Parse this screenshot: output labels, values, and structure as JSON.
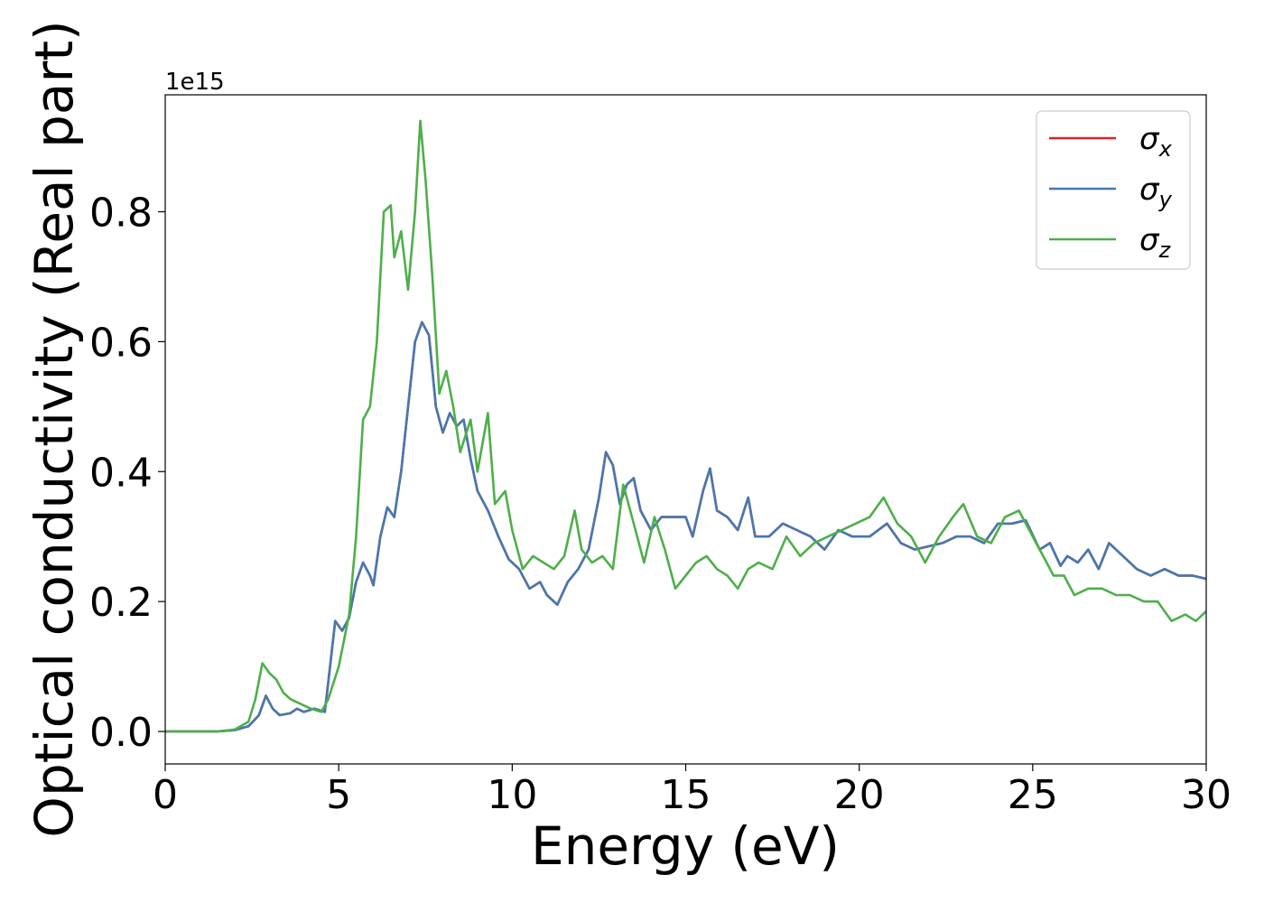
{
  "chart_data": {
    "type": "line",
    "title": "",
    "xlabel": "Energy (eV)",
    "ylabel": "Optical conductivity (Real part)",
    "offset_text": "1e15",
    "xlim": [
      0,
      30
    ],
    "ylim": [
      -0.05,
      0.98
    ],
    "grid": false,
    "legend_position": "top-right",
    "x_ticks": [
      0,
      5,
      10,
      15,
      20,
      25,
      30
    ],
    "x_tick_labels": [
      "0",
      "5",
      "10",
      "15",
      "20",
      "25",
      "30"
    ],
    "y_ticks": [
      0.0,
      0.2,
      0.4,
      0.6,
      0.8
    ],
    "y_tick_labels": [
      "0.0",
      "0.2",
      "0.4",
      "0.6",
      "0.8"
    ],
    "legend": [
      {
        "symbol": "σ",
        "sub": "x",
        "color": "#d62728"
      },
      {
        "symbol": "σ",
        "sub": "y",
        "color": "#4678b0"
      },
      {
        "symbol": "σ",
        "sub": "z",
        "color": "#4daf4a"
      }
    ],
    "series": [
      {
        "name": "σx",
        "color": "#d62728",
        "x": [
          0,
          0.5,
          1,
          1.5,
          2,
          2.4,
          2.7,
          2.9,
          3.1,
          3.3,
          3.6,
          3.8,
          4.0,
          4.3,
          4.6,
          4.9,
          5.1,
          5.3,
          5.5,
          5.7,
          5.9,
          6.0,
          6.2,
          6.4,
          6.6,
          6.8,
          7.0,
          7.2,
          7.4,
          7.6,
          7.8,
          8.0,
          8.2,
          8.4,
          8.6,
          8.8,
          9.0,
          9.3,
          9.6,
          9.9,
          10.2,
          10.5,
          10.8,
          11.0,
          11.3,
          11.6,
          11.9,
          12.2,
          12.5,
          12.7,
          12.9,
          13.1,
          13.3,
          13.5,
          13.7,
          14.0,
          14.3,
          14.6,
          15.0,
          15.2,
          15.5,
          15.7,
          15.9,
          16.2,
          16.5,
          16.8,
          17.0,
          17.4,
          17.8,
          18.2,
          18.6,
          19.0,
          19.4,
          19.8,
          20.3,
          20.8,
          21.2,
          21.6,
          22.0,
          22.4,
          22.8,
          23.2,
          23.6,
          24.0,
          24.4,
          24.8,
          25.2,
          25.5,
          25.8,
          26.0,
          26.3,
          26.6,
          26.9,
          27.2,
          27.6,
          28.0,
          28.4,
          28.8,
          29.2,
          29.6,
          30.0
        ],
        "y": [
          0.0,
          0.0,
          0.0,
          0.0,
          0.002,
          0.008,
          0.025,
          0.055,
          0.035,
          0.025,
          0.028,
          0.035,
          0.03,
          0.035,
          0.03,
          0.17,
          0.155,
          0.175,
          0.23,
          0.26,
          0.24,
          0.225,
          0.3,
          0.345,
          0.33,
          0.4,
          0.5,
          0.6,
          0.63,
          0.61,
          0.5,
          0.46,
          0.49,
          0.47,
          0.48,
          0.42,
          0.37,
          0.34,
          0.3,
          0.265,
          0.25,
          0.22,
          0.23,
          0.21,
          0.195,
          0.23,
          0.25,
          0.28,
          0.36,
          0.43,
          0.41,
          0.35,
          0.38,
          0.39,
          0.34,
          0.31,
          0.33,
          0.33,
          0.33,
          0.3,
          0.37,
          0.405,
          0.34,
          0.33,
          0.31,
          0.36,
          0.3,
          0.3,
          0.32,
          0.31,
          0.3,
          0.28,
          0.31,
          0.3,
          0.3,
          0.32,
          0.29,
          0.28,
          0.285,
          0.29,
          0.3,
          0.3,
          0.29,
          0.32,
          0.32,
          0.325,
          0.28,
          0.29,
          0.255,
          0.27,
          0.26,
          0.28,
          0.25,
          0.29,
          0.27,
          0.25,
          0.24,
          0.25,
          0.24,
          0.24,
          0.235
        ]
      },
      {
        "name": "σy",
        "color": "#4678b0",
        "x": [
          0,
          0.5,
          1,
          1.5,
          2,
          2.4,
          2.7,
          2.9,
          3.1,
          3.3,
          3.6,
          3.8,
          4.0,
          4.3,
          4.6,
          4.9,
          5.1,
          5.3,
          5.5,
          5.7,
          5.9,
          6.0,
          6.2,
          6.4,
          6.6,
          6.8,
          7.0,
          7.2,
          7.4,
          7.6,
          7.8,
          8.0,
          8.2,
          8.4,
          8.6,
          8.8,
          9.0,
          9.3,
          9.6,
          9.9,
          10.2,
          10.5,
          10.8,
          11.0,
          11.3,
          11.6,
          11.9,
          12.2,
          12.5,
          12.7,
          12.9,
          13.1,
          13.3,
          13.5,
          13.7,
          14.0,
          14.3,
          14.6,
          15.0,
          15.2,
          15.5,
          15.7,
          15.9,
          16.2,
          16.5,
          16.8,
          17.0,
          17.4,
          17.8,
          18.2,
          18.6,
          19.0,
          19.4,
          19.8,
          20.3,
          20.8,
          21.2,
          21.6,
          22.0,
          22.4,
          22.8,
          23.2,
          23.6,
          24.0,
          24.4,
          24.8,
          25.2,
          25.5,
          25.8,
          26.0,
          26.3,
          26.6,
          26.9,
          27.2,
          27.6,
          28.0,
          28.4,
          28.8,
          29.2,
          29.6,
          30.0
        ],
        "y": [
          0.0,
          0.0,
          0.0,
          0.0,
          0.002,
          0.008,
          0.025,
          0.055,
          0.035,
          0.025,
          0.028,
          0.035,
          0.03,
          0.035,
          0.03,
          0.17,
          0.155,
          0.175,
          0.23,
          0.26,
          0.24,
          0.225,
          0.3,
          0.345,
          0.33,
          0.4,
          0.5,
          0.6,
          0.63,
          0.61,
          0.5,
          0.46,
          0.49,
          0.47,
          0.48,
          0.42,
          0.37,
          0.34,
          0.3,
          0.265,
          0.25,
          0.22,
          0.23,
          0.21,
          0.195,
          0.23,
          0.25,
          0.28,
          0.36,
          0.43,
          0.41,
          0.35,
          0.38,
          0.39,
          0.34,
          0.31,
          0.33,
          0.33,
          0.33,
          0.3,
          0.37,
          0.405,
          0.34,
          0.33,
          0.31,
          0.36,
          0.3,
          0.3,
          0.32,
          0.31,
          0.3,
          0.28,
          0.31,
          0.3,
          0.3,
          0.32,
          0.29,
          0.28,
          0.285,
          0.29,
          0.3,
          0.3,
          0.29,
          0.32,
          0.32,
          0.325,
          0.28,
          0.29,
          0.255,
          0.27,
          0.26,
          0.28,
          0.25,
          0.29,
          0.27,
          0.25,
          0.24,
          0.25,
          0.24,
          0.24,
          0.235
        ]
      },
      {
        "name": "σz",
        "color": "#4daf4a",
        "x": [
          0,
          0.5,
          1,
          1.5,
          2,
          2.4,
          2.6,
          2.8,
          3.0,
          3.2,
          3.4,
          3.6,
          3.8,
          4.0,
          4.2,
          4.5,
          4.7,
          5.0,
          5.3,
          5.5,
          5.7,
          5.9,
          6.1,
          6.3,
          6.5,
          6.6,
          6.8,
          7.0,
          7.2,
          7.35,
          7.5,
          7.7,
          7.9,
          8.1,
          8.3,
          8.5,
          8.8,
          9.0,
          9.3,
          9.5,
          9.8,
          10.0,
          10.3,
          10.6,
          10.9,
          11.2,
          11.5,
          11.8,
          12.0,
          12.3,
          12.6,
          12.9,
          13.2,
          13.5,
          13.8,
          14.1,
          14.4,
          14.7,
          15.0,
          15.3,
          15.6,
          15.9,
          16.2,
          16.5,
          16.8,
          17.1,
          17.5,
          17.9,
          18.3,
          18.7,
          19.1,
          19.5,
          19.9,
          20.3,
          20.7,
          21.1,
          21.5,
          21.9,
          22.3,
          22.7,
          23.0,
          23.4,
          23.8,
          24.2,
          24.6,
          25.0,
          25.3,
          25.6,
          25.9,
          26.2,
          26.6,
          27.0,
          27.4,
          27.8,
          28.2,
          28.6,
          29.0,
          29.4,
          29.7,
          30.0
        ],
        "y": [
          0.0,
          0.0,
          0.0,
          0.0,
          0.003,
          0.015,
          0.05,
          0.105,
          0.09,
          0.08,
          0.06,
          0.05,
          0.045,
          0.04,
          0.035,
          0.03,
          0.05,
          0.1,
          0.18,
          0.3,
          0.48,
          0.5,
          0.6,
          0.8,
          0.81,
          0.73,
          0.77,
          0.68,
          0.8,
          0.94,
          0.85,
          0.7,
          0.52,
          0.555,
          0.5,
          0.43,
          0.48,
          0.4,
          0.49,
          0.35,
          0.37,
          0.31,
          0.25,
          0.27,
          0.26,
          0.25,
          0.27,
          0.34,
          0.28,
          0.26,
          0.27,
          0.25,
          0.38,
          0.32,
          0.26,
          0.33,
          0.28,
          0.22,
          0.24,
          0.26,
          0.27,
          0.25,
          0.24,
          0.22,
          0.25,
          0.26,
          0.25,
          0.3,
          0.27,
          0.29,
          0.3,
          0.31,
          0.32,
          0.33,
          0.36,
          0.32,
          0.3,
          0.26,
          0.3,
          0.33,
          0.35,
          0.3,
          0.29,
          0.33,
          0.34,
          0.3,
          0.27,
          0.24,
          0.24,
          0.21,
          0.22,
          0.22,
          0.21,
          0.21,
          0.2,
          0.2,
          0.17,
          0.18,
          0.17,
          0.185
        ]
      }
    ]
  }
}
